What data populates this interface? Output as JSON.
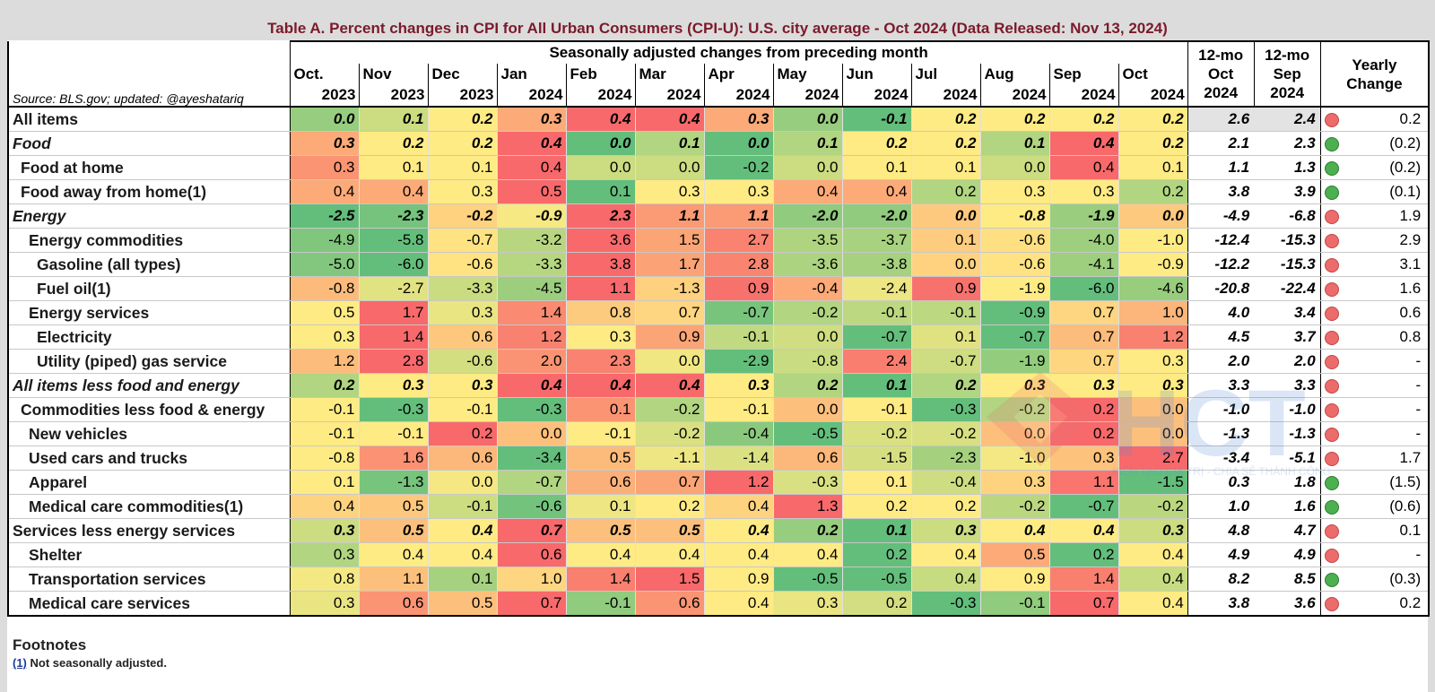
{
  "title": "Table A. Percent changes in CPI for All Urban Consumers (CPI-U): U.S. city average - Oct 2024 (Data Released: Nov 13, 2024)",
  "header": {
    "group_label": "Seasonally adjusted changes from preceding month",
    "source": "Source: BLS.gov; updated: @ayeshatariq",
    "months": [
      "Oct.",
      "Nov",
      "Dec",
      "Jan",
      "Feb",
      "Mar",
      "Apr",
      "May",
      "Jun",
      "Jul",
      "Aug",
      "Sep",
      "Oct"
    ],
    "years": [
      "2023",
      "2023",
      "2023",
      "2024",
      "2024",
      "2024",
      "2024",
      "2024",
      "2024",
      "2024",
      "2024",
      "2024",
      "2024"
    ],
    "col12_oct": [
      "12-mo",
      "Oct",
      "2024"
    ],
    "col12_sep": [
      "12-mo",
      "Sep",
      "2024"
    ],
    "yearly": [
      "Yearly",
      "Change"
    ]
  },
  "colors": {
    "green_dot": "#4caf50",
    "red_dot": "#ec6b6b",
    "title": "#7b1a2a"
  },
  "chart_data": {
    "type": "table",
    "columns": [
      "Oct. 2023",
      "Nov 2023",
      "Dec 2023",
      "Jan 2024",
      "Feb 2024",
      "Mar 2024",
      "Apr 2024",
      "May 2024",
      "Jun 2024",
      "Jul 2024",
      "Aug 2024",
      "Sep 2024",
      "Oct 2024"
    ],
    "rows": [
      {
        "label": "All items",
        "indent": 0,
        "style": "bold",
        "values": [
          "0.0",
          "0.1",
          "0.2",
          "0.3",
          "0.4",
          "0.4",
          "0.3",
          "0.0",
          "-0.1",
          "0.2",
          "0.2",
          "0.2",
          "0.2"
        ],
        "y12_oct": "2.6",
        "y12_sep": "2.4",
        "indicator": "red",
        "yearly_change": "0.2"
      },
      {
        "label": "Food",
        "indent": 0,
        "style": "bolditalic",
        "values": [
          "0.3",
          "0.2",
          "0.2",
          "0.4",
          "0.0",
          "0.1",
          "0.0",
          "0.1",
          "0.2",
          "0.2",
          "0.1",
          "0.4",
          "0.2"
        ],
        "y12_oct": "2.1",
        "y12_sep": "2.3",
        "indicator": "green",
        "yearly_change": "(0.2)"
      },
      {
        "label": "Food at home",
        "indent": 1,
        "style": "normal",
        "values": [
          "0.3",
          "0.1",
          "0.1",
          "0.4",
          "0.0",
          "0.0",
          "-0.2",
          "0.0",
          "0.1",
          "0.1",
          "0.0",
          "0.4",
          "0.1"
        ],
        "y12_oct": "1.1",
        "y12_sep": "1.3",
        "indicator": "green",
        "yearly_change": "(0.2)"
      },
      {
        "label": "Food away from home(1)",
        "indent": 1,
        "style": "normal",
        "values": [
          "0.4",
          "0.4",
          "0.3",
          "0.5",
          "0.1",
          "0.3",
          "0.3",
          "0.4",
          "0.4",
          "0.2",
          "0.3",
          "0.3",
          "0.2"
        ],
        "y12_oct": "3.8",
        "y12_sep": "3.9",
        "indicator": "green",
        "yearly_change": "(0.1)"
      },
      {
        "label": "Energy",
        "indent": 0,
        "style": "bolditalic",
        "values": [
          "-2.5",
          "-2.3",
          "-0.2",
          "-0.9",
          "2.3",
          "1.1",
          "1.1",
          "-2.0",
          "-2.0",
          "0.0",
          "-0.8",
          "-1.9",
          "0.0"
        ],
        "y12_oct": "-4.9",
        "y12_sep": "-6.8",
        "indicator": "red",
        "yearly_change": "1.9"
      },
      {
        "label": "Energy commodities",
        "indent": 2,
        "style": "normal",
        "values": [
          "-4.9",
          "-5.8",
          "-0.7",
          "-3.2",
          "3.6",
          "1.5",
          "2.7",
          "-3.5",
          "-3.7",
          "0.1",
          "-0.6",
          "-4.0",
          "-1.0"
        ],
        "y12_oct": "-12.4",
        "y12_sep": "-15.3",
        "indicator": "red",
        "yearly_change": "2.9"
      },
      {
        "label": "Gasoline (all types)",
        "indent": 3,
        "style": "normal",
        "values": [
          "-5.0",
          "-6.0",
          "-0.6",
          "-3.3",
          "3.8",
          "1.7",
          "2.8",
          "-3.6",
          "-3.8",
          "0.0",
          "-0.6",
          "-4.1",
          "-0.9"
        ],
        "y12_oct": "-12.2",
        "y12_sep": "-15.3",
        "indicator": "red",
        "yearly_change": "3.1"
      },
      {
        "label": "Fuel oil(1)",
        "indent": 3,
        "style": "normal",
        "values": [
          "-0.8",
          "-2.7",
          "-3.3",
          "-4.5",
          "1.1",
          "-1.3",
          "0.9",
          "-0.4",
          "-2.4",
          "0.9",
          "-1.9",
          "-6.0",
          "-4.6"
        ],
        "y12_oct": "-20.8",
        "y12_sep": "-22.4",
        "indicator": "red",
        "yearly_change": "1.6"
      },
      {
        "label": "Energy services",
        "indent": 2,
        "style": "normal",
        "values": [
          "0.5",
          "1.7",
          "0.3",
          "1.4",
          "0.8",
          "0.7",
          "-0.7",
          "-0.2",
          "-0.1",
          "-0.1",
          "-0.9",
          "0.7",
          "1.0"
        ],
        "y12_oct": "4.0",
        "y12_sep": "3.4",
        "indicator": "red",
        "yearly_change": "0.6"
      },
      {
        "label": "Electricity",
        "indent": 3,
        "style": "normal",
        "values": [
          "0.3",
          "1.4",
          "0.6",
          "1.2",
          "0.3",
          "0.9",
          "-0.1",
          "0.0",
          "-0.7",
          "0.1",
          "-0.7",
          "0.7",
          "1.2"
        ],
        "y12_oct": "4.5",
        "y12_sep": "3.7",
        "indicator": "red",
        "yearly_change": "0.8"
      },
      {
        "label": "Utility (piped) gas service",
        "indent": 3,
        "style": "normal",
        "values": [
          "1.2",
          "2.8",
          "-0.6",
          "2.0",
          "2.3",
          "0.0",
          "-2.9",
          "-0.8",
          "2.4",
          "-0.7",
          "-1.9",
          "0.7",
          "0.3"
        ],
        "y12_oct": "2.0",
        "y12_sep": "2.0",
        "indicator": "red",
        "yearly_change": "-"
      },
      {
        "label": "All items less food and energy",
        "indent": 0,
        "style": "bolditalic",
        "values": [
          "0.2",
          "0.3",
          "0.3",
          "0.4",
          "0.4",
          "0.4",
          "0.3",
          "0.2",
          "0.1",
          "0.2",
          "0.3",
          "0.3",
          "0.3"
        ],
        "y12_oct": "3.3",
        "y12_sep": "3.3",
        "indicator": "red",
        "yearly_change": "-"
      },
      {
        "label": "Commodities less food & energy",
        "indent": 1,
        "style": "normal",
        "values": [
          "-0.1",
          "-0.3",
          "-0.1",
          "-0.3",
          "0.1",
          "-0.2",
          "-0.1",
          "0.0",
          "-0.1",
          "-0.3",
          "-0.2",
          "0.2",
          "0.0"
        ],
        "y12_oct": "-1.0",
        "y12_sep": "-1.0",
        "indicator": "red",
        "yearly_change": "-"
      },
      {
        "label": "New vehicles",
        "indent": 2,
        "style": "normal",
        "values": [
          "-0.1",
          "-0.1",
          "0.2",
          "0.0",
          "-0.1",
          "-0.2",
          "-0.4",
          "-0.5",
          "-0.2",
          "-0.2",
          "0.0",
          "0.2",
          "0.0"
        ],
        "y12_oct": "-1.3",
        "y12_sep": "-1.3",
        "indicator": "red",
        "yearly_change": "-"
      },
      {
        "label": "Used cars and trucks",
        "indent": 2,
        "style": "normal",
        "values": [
          "-0.8",
          "1.6",
          "0.6",
          "-3.4",
          "0.5",
          "-1.1",
          "-1.4",
          "0.6",
          "-1.5",
          "-2.3",
          "-1.0",
          "0.3",
          "2.7"
        ],
        "y12_oct": "-3.4",
        "y12_sep": "-5.1",
        "indicator": "red",
        "yearly_change": "1.7"
      },
      {
        "label": "Apparel",
        "indent": 2,
        "style": "normal",
        "values": [
          "0.1",
          "-1.3",
          "0.0",
          "-0.7",
          "0.6",
          "0.7",
          "1.2",
          "-0.3",
          "0.1",
          "-0.4",
          "0.3",
          "1.1",
          "-1.5"
        ],
        "y12_oct": "0.3",
        "y12_sep": "1.8",
        "indicator": "green",
        "yearly_change": "(1.5)"
      },
      {
        "label": "Medical care commodities(1)",
        "indent": 2,
        "style": "normal",
        "values": [
          "0.4",
          "0.5",
          "-0.1",
          "-0.6",
          "0.1",
          "0.2",
          "0.4",
          "1.3",
          "0.2",
          "0.2",
          "-0.2",
          "-0.7",
          "-0.2"
        ],
        "y12_oct": "1.0",
        "y12_sep": "1.6",
        "indicator": "green",
        "yearly_change": "(0.6)"
      },
      {
        "label": "Services less energy services",
        "indent": 0,
        "style": "bold",
        "values": [
          "0.3",
          "0.5",
          "0.4",
          "0.7",
          "0.5",
          "0.5",
          "0.4",
          "0.2",
          "0.1",
          "0.3",
          "0.4",
          "0.4",
          "0.3"
        ],
        "y12_oct": "4.8",
        "y12_sep": "4.7",
        "indicator": "red",
        "yearly_change": "0.1"
      },
      {
        "label": "Shelter",
        "indent": 2,
        "style": "normal",
        "values": [
          "0.3",
          "0.4",
          "0.4",
          "0.6",
          "0.4",
          "0.4",
          "0.4",
          "0.4",
          "0.2",
          "0.4",
          "0.5",
          "0.2",
          "0.4"
        ],
        "y12_oct": "4.9",
        "y12_sep": "4.9",
        "indicator": "red",
        "yearly_change": "-"
      },
      {
        "label": "Transportation services",
        "indent": 2,
        "style": "normal",
        "values": [
          "0.8",
          "1.1",
          "0.1",
          "1.0",
          "1.4",
          "1.5",
          "0.9",
          "-0.5",
          "-0.5",
          "0.4",
          "0.9",
          "1.4",
          "0.4"
        ],
        "y12_oct": "8.2",
        "y12_sep": "8.5",
        "indicator": "green",
        "yearly_change": "(0.3)"
      },
      {
        "label": "Medical care services",
        "indent": 2,
        "style": "normal",
        "values": [
          "0.3",
          "0.6",
          "0.5",
          "0.7",
          "-0.1",
          "0.6",
          "0.4",
          "0.3",
          "0.2",
          "-0.3",
          "-0.1",
          "0.7",
          "0.4"
        ],
        "y12_oct": "3.8",
        "y12_sep": "3.6",
        "indicator": "red",
        "yearly_change": "0.2"
      }
    ]
  },
  "watermark": {
    "logo_text": "HCT",
    "tagline": "KIẾN TẠO GIÁ TRỊ - CHIA SẺ THÀNH CÔNG"
  },
  "footnotes": {
    "title": "Footnotes",
    "link": "(1)",
    "text": " Not seasonally adjusted."
  }
}
